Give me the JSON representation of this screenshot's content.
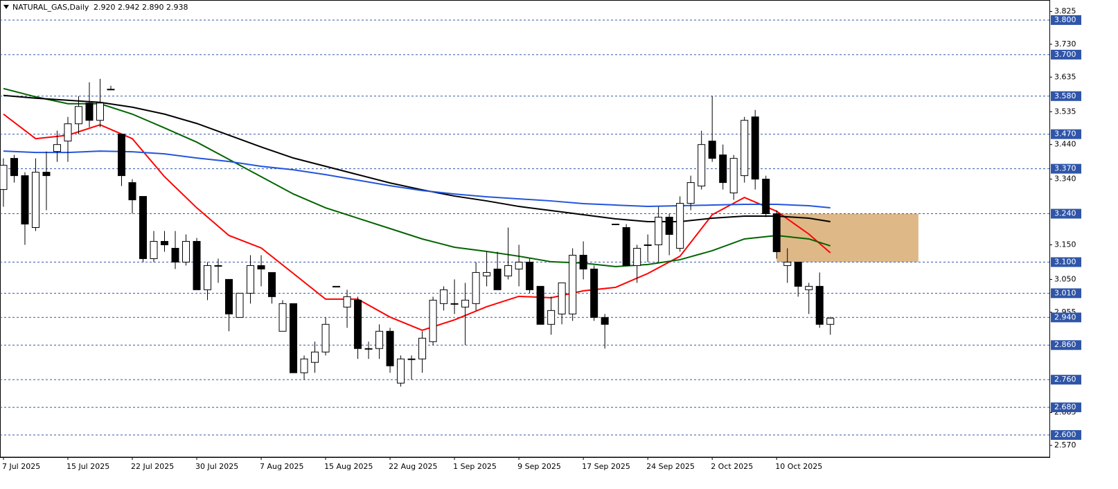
{
  "chart_data": {
    "type": "candlestick",
    "title": "NATURAL_GAS,Daily",
    "subtitle": "2.920 2.942 2.890 2.938",
    "categories": [
      "7 Jul 2025",
      null,
      null,
      null,
      null,
      null,
      "15 Jul 2025",
      null,
      null,
      null,
      null,
      null,
      "22 Jul 2025",
      null,
      null,
      null,
      null,
      null,
      "30 Jul 2025",
      null,
      null,
      null,
      null,
      null,
      "7 Aug 2025",
      null,
      null,
      null,
      null,
      null,
      "15 Aug 2025",
      null,
      null,
      null,
      null,
      null,
      "22 Aug 2025",
      null,
      null,
      null,
      null,
      null,
      "1 Sep 2025",
      null,
      null,
      null,
      null,
      null,
      "9 Sep 2025",
      null,
      null,
      null,
      null,
      null,
      "17 Sep 2025",
      null,
      null,
      null,
      null,
      null,
      "24 Sep 2025",
      null,
      null,
      null,
      null,
      null,
      "2 Oct 2025",
      null,
      null,
      null,
      null,
      null,
      "10 Oct 2025",
      null,
      null,
      null,
      null,
      null
    ],
    "open": [
      3.31,
      3.4,
      3.35,
      3.2,
      3.36,
      3.42,
      3.45,
      3.5,
      3.56,
      3.51,
      3.6,
      3.47,
      3.33,
      3.29,
      3.11,
      3.16,
      3.14,
      3.1,
      3.16,
      3.02,
      3.09,
      3.05,
      2.94,
      3.01,
      3.09,
      3.07,
      2.9,
      2.98,
      2.78,
      2.81,
      2.84,
      3.03,
      2.97,
      2.99,
      2.85,
      2.85,
      2.9,
      2.75,
      2.82,
      2.82,
      2.87,
      2.98,
      2.98,
      2.97,
      2.98,
      3.06,
      3.08,
      3.06,
      3.08,
      3.1,
      3.03,
      2.92,
      2.95,
      2.95,
      3.12,
      3.08,
      2.94,
      3.21,
      3.2,
      3.09,
      3.15,
      3.15,
      3.23,
      3.14,
      3.27,
      3.32,
      3.45,
      3.41,
      3.3,
      3.35,
      3.52,
      3.34,
      3.24,
      3.09,
      3.1,
      3.02,
      3.03,
      2.92
    ],
    "high": [
      3.4,
      3.41,
      3.36,
      3.4,
      3.42,
      3.48,
      3.52,
      3.58,
      3.62,
      3.63,
      3.61,
      3.47,
      3.34,
      3.29,
      3.19,
      3.19,
      3.19,
      3.18,
      3.17,
      3.1,
      3.11,
      3.05,
      3.01,
      3.12,
      3.12,
      3.07,
      2.99,
      2.98,
      2.83,
      2.87,
      2.94,
      3.03,
      3.02,
      3.0,
      2.87,
      2.92,
      2.91,
      2.83,
      2.83,
      2.9,
      3.0,
      3.03,
      3.05,
      3.04,
      3.1,
      3.13,
      3.13,
      3.2,
      3.15,
      3.11,
      3.03,
      3.0,
      3.04,
      3.14,
      3.16,
      3.09,
      2.95,
      3.21,
      3.21,
      3.15,
      3.18,
      3.26,
      3.24,
      3.29,
      3.35,
      3.48,
      3.58,
      3.44,
      3.41,
      3.52,
      3.54,
      3.35,
      3.25,
      3.14,
      3.1,
      3.04,
      3.07,
      2.942
    ],
    "low": [
      3.26,
      3.33,
      3.15,
      3.19,
      3.25,
      3.39,
      3.39,
      3.47,
      3.49,
      3.49,
      3.6,
      3.32,
      3.24,
      3.1,
      3.1,
      3.13,
      3.08,
      3.09,
      3.02,
      2.99,
      3.04,
      2.9,
      2.94,
      2.98,
      3.03,
      2.98,
      2.9,
      2.78,
      2.76,
      2.78,
      2.83,
      3.03,
      2.91,
      2.82,
      2.82,
      2.82,
      2.78,
      2.74,
      2.76,
      2.78,
      2.86,
      2.96,
      2.95,
      2.86,
      2.96,
      3.03,
      3.02,
      3.05,
      3.03,
      3.01,
      2.92,
      2.89,
      2.92,
      2.93,
      3.05,
      2.93,
      2.85,
      3.21,
      3.09,
      3.04,
      3.1,
      3.1,
      3.12,
      3.13,
      3.25,
      3.31,
      3.39,
      3.31,
      3.28,
      3.33,
      3.31,
      3.23,
      3.11,
      3.04,
      3.0,
      2.95,
      2.91,
      2.89
    ],
    "close": [
      3.38,
      3.35,
      3.21,
      3.36,
      3.35,
      3.44,
      3.5,
      3.55,
      3.51,
      3.56,
      3.6,
      3.35,
      3.28,
      3.11,
      3.16,
      3.15,
      3.1,
      3.16,
      3.02,
      3.09,
      3.09,
      2.95,
      3.01,
      3.09,
      3.08,
      3.0,
      2.98,
      2.78,
      2.82,
      2.84,
      2.92,
      3.03,
      3.0,
      2.85,
      2.85,
      2.9,
      2.8,
      2.82,
      2.82,
      2.88,
      2.99,
      3.02,
      2.98,
      2.99,
      3.07,
      3.07,
      3.02,
      3.09,
      3.1,
      3.02,
      2.92,
      2.96,
      3.04,
      3.12,
      3.08,
      2.94,
      2.92,
      3.21,
      3.09,
      3.14,
      3.15,
      3.23,
      3.18,
      3.27,
      3.33,
      3.44,
      3.4,
      3.33,
      3.4,
      3.51,
      3.34,
      3.24,
      3.13,
      3.1,
      3.03,
      3.03,
      2.92,
      2.938
    ],
    "series": [
      {
        "color": "#ff0000",
        "x": [
          0,
          3,
          6,
          9,
          12,
          15,
          18,
          21,
          24,
          27,
          30,
          33,
          36,
          39,
          42,
          45,
          48,
          51,
          54,
          57,
          60,
          63,
          66,
          69,
          72,
          75,
          77
        ],
        "values": [
          3.528,
          3.457,
          3.467,
          3.497,
          3.457,
          3.347,
          3.257,
          3.177,
          3.141,
          3.067,
          2.993,
          2.993,
          2.941,
          2.903,
          2.933,
          2.971,
          3.001,
          2.997,
          3.017,
          3.027,
          3.067,
          3.117,
          3.237,
          3.287,
          3.247,
          3.181,
          3.127
        ]
      },
      {
        "color": "#006400",
        "x": [
          0,
          3,
          6,
          9,
          12,
          15,
          18,
          21,
          24,
          27,
          30,
          33,
          36,
          39,
          42,
          45,
          48,
          51,
          54,
          57,
          60,
          63,
          66,
          69,
          72,
          75,
          77
        ],
        "values": [
          3.602,
          3.578,
          3.558,
          3.558,
          3.528,
          3.488,
          3.447,
          3.397,
          3.347,
          3.297,
          3.257,
          3.227,
          3.197,
          3.167,
          3.143,
          3.131,
          3.117,
          3.101,
          3.097,
          3.087,
          3.093,
          3.107,
          3.133,
          3.167,
          3.177,
          3.167,
          3.147
        ]
      },
      {
        "color": "#000000",
        "x": [
          0,
          3,
          6,
          9,
          12,
          15,
          18,
          21,
          24,
          27,
          30,
          33,
          36,
          39,
          42,
          45,
          48,
          51,
          54,
          57,
          60,
          63,
          66,
          69,
          72,
          75,
          77
        ],
        "values": [
          3.582,
          3.574,
          3.568,
          3.562,
          3.548,
          3.528,
          3.501,
          3.467,
          3.433,
          3.401,
          3.377,
          3.353,
          3.329,
          3.309,
          3.291,
          3.277,
          3.261,
          3.249,
          3.237,
          3.225,
          3.217,
          3.217,
          3.227,
          3.233,
          3.233,
          3.227,
          3.217
        ]
      },
      {
        "color": "#2255dd",
        "x": [
          0,
          3,
          6,
          9,
          12,
          15,
          18,
          21,
          24,
          27,
          30,
          33,
          36,
          39,
          42,
          45,
          48,
          51,
          54,
          57,
          60,
          63,
          66,
          69,
          72,
          75,
          77
        ],
        "values": [
          3.421,
          3.417,
          3.417,
          3.421,
          3.419,
          3.413,
          3.401,
          3.391,
          3.377,
          3.367,
          3.353,
          3.337,
          3.321,
          3.307,
          3.297,
          3.289,
          3.283,
          3.277,
          3.269,
          3.265,
          3.261,
          3.263,
          3.265,
          3.267,
          3.267,
          3.263,
          3.257
        ]
      }
    ],
    "zone": {
      "color": "#deb887",
      "x": [
        72,
        85.2
      ],
      "y": [
        3.1,
        3.24
      ]
    },
    "levels": [
      {
        "value": 3.8,
        "label": "3.800"
      },
      {
        "value": 3.7,
        "label": "3.700"
      },
      {
        "value": 3.58,
        "label": "3.580"
      },
      {
        "value": 3.47,
        "label": "3.470"
      },
      {
        "value": 3.37,
        "label": "3.370"
      },
      {
        "value": 3.24,
        "label": "3.240"
      },
      {
        "value": 3.1,
        "label": "3.100"
      },
      {
        "value": 3.01,
        "label": "3.010"
      },
      {
        "value": 2.94,
        "label": "2.940"
      },
      {
        "value": 2.86,
        "label": "2.860"
      },
      {
        "value": 2.76,
        "label": "2.760"
      },
      {
        "value": 2.68,
        "label": "2.680"
      },
      {
        "value": 2.6,
        "label": "2.600"
      }
    ],
    "level_color": "#2f55a8",
    "xlim": [
      -0.32,
      97.4
    ],
    "ylim": [
      2.536,
      3.858
    ],
    "yticks": [
      3.825,
      {
        "value": 3.73,
        "label": "3.730"
      },
      3.635,
      3.535,
      {
        "value": 3.44,
        "label": "3.440"
      },
      {
        "value": 3.34,
        "label": "3.340"
      },
      {
        "value": 3.15,
        "label": "3.150"
      },
      {
        "value": 3.05,
        "label": "3.050"
      },
      2.955,
      2.665,
      {
        "value": 2.57,
        "label": "2.570"
      }
    ]
  }
}
